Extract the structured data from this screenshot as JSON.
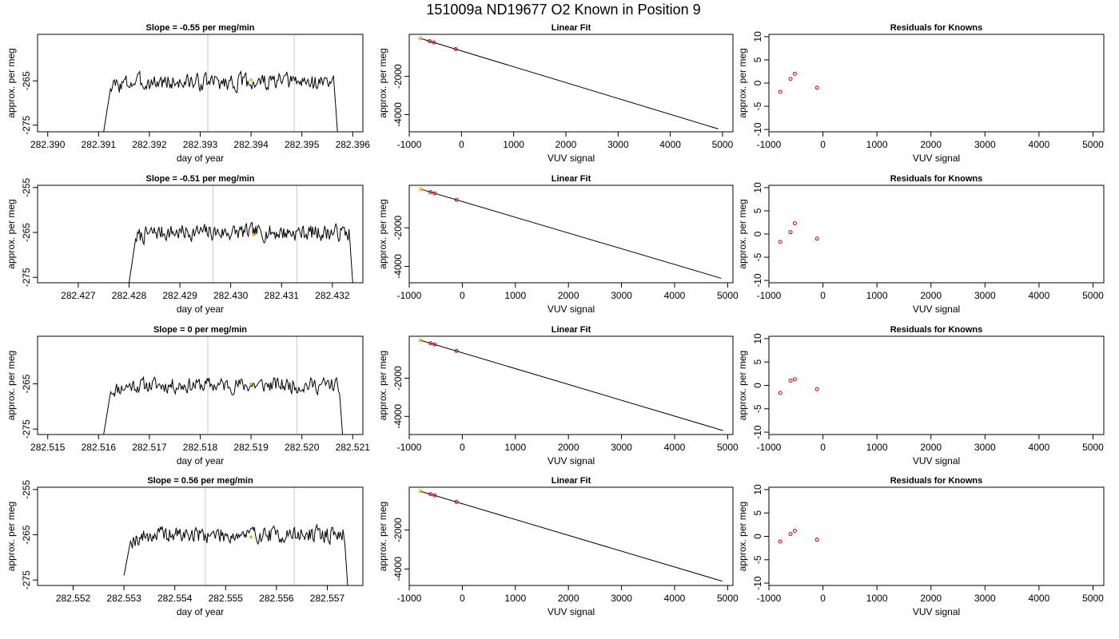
{
  "page_title": "151009a     ND19677   O2 Known in Position  9",
  "colors": {
    "trace": "#000000",
    "grid_lines": "#c8c8c8",
    "highlight_point": "#ffa500",
    "residual_point": "#cc0000",
    "fit_point": "#cc0000"
  },
  "chart_data": [
    {
      "type": "line",
      "panel": "time-series",
      "row": 1,
      "title": "Slope =  -0.55  per meg/min",
      "xlabel": "day of year",
      "ylabel": "approx. per meg",
      "xlim": [
        282.3898,
        282.3962
      ],
      "ylim": [
        -276.5,
        -254.5
      ],
      "x_ticks": [
        "282.390",
        "282.391",
        "282.392",
        "282.393",
        "282.394",
        "282.395",
        "282.396"
      ],
      "x_tick_values": [
        282.39,
        282.391,
        282.392,
        282.393,
        282.394,
        282.395,
        282.396
      ],
      "y_ticks": [
        "-265",
        "-275"
      ],
      "y_tick_values": [
        -265,
        -275
      ],
      "trace_x_range": [
        282.3911,
        282.3957
      ],
      "trace_start_y": -276.5,
      "trace_end_y": -276.5,
      "mean_level": -265.3,
      "noise_amplitude": 1.7,
      "seed": 3,
      "vlines": [
        282.39315,
        282.39485
      ],
      "highlight": {
        "x": 282.394,
        "y": -264.8
      }
    },
    {
      "type": "line",
      "panel": "linear-fit",
      "row": 1,
      "title": "Linear Fit",
      "xlabel": "VUV signal",
      "ylabel": "approx. per meg",
      "xlim": [
        -1000,
        5200
      ],
      "ylim": [
        -4900,
        200
      ],
      "x_ticks": [
        "-1000",
        "0",
        "1000",
        "2000",
        "3000",
        "4000",
        "5000"
      ],
      "x_tick_values": [
        -1000,
        0,
        1000,
        2000,
        3000,
        4000,
        5000
      ],
      "y_ticks": [
        "-2000",
        "-4000"
      ],
      "y_tick_values": [
        -2000,
        -4000
      ],
      "fit_line": {
        "x": [
          -790,
          4920
        ],
        "y": [
          -10,
          -4750
        ]
      },
      "points": {
        "x": [
          -790,
          -610,
          -530,
          -110
        ],
        "y": [
          -10,
          -160,
          -225,
          -575
        ]
      },
      "highlight_index": 0
    },
    {
      "type": "scatter",
      "panel": "residuals",
      "row": 1,
      "title": "Residuals for Knowns",
      "xlabel": "VUV signal",
      "ylabel": "approx. per meg",
      "xlim": [
        -1000,
        5200
      ],
      "ylim": [
        -10.5,
        10.5
      ],
      "x_ticks": [
        "-1000",
        "0",
        "1000",
        "2000",
        "3000",
        "4000",
        "5000"
      ],
      "x_tick_values": [
        -1000,
        0,
        1000,
        2000,
        3000,
        4000,
        5000
      ],
      "y_ticks": [
        "10",
        "5",
        "0",
        "-5",
        "-10"
      ],
      "y_tick_values": [
        10,
        5,
        0,
        -5,
        -10
      ],
      "points": {
        "x": [
          -790,
          -600,
          -520,
          -110
        ],
        "y": [
          -1.9,
          0.9,
          2.0,
          -1.0
        ]
      }
    },
    {
      "type": "line",
      "panel": "time-series",
      "row": 2,
      "title": "Slope =  -0.51  per meg/min",
      "xlabel": "day of year",
      "ylabel": "approx. per meg",
      "xlim": [
        282.4262,
        282.4326
      ],
      "ylim": [
        -276.2,
        -254.5
      ],
      "x_ticks": [
        "282.427",
        "282.428",
        "282.429",
        "282.430",
        "282.431",
        "282.432"
      ],
      "x_tick_values": [
        282.427,
        282.428,
        282.429,
        282.43,
        282.431,
        282.432
      ],
      "y_ticks": [
        "-255",
        "-265",
        "-275"
      ],
      "y_tick_values": [
        -255,
        -265,
        -275
      ],
      "trace_x_range": [
        282.428,
        282.4324
      ],
      "trace_start_y": -276.2,
      "trace_end_y": -276.2,
      "mean_level": -265.0,
      "noise_amplitude": 1.6,
      "seed": 7,
      "vlines": [
        282.42965,
        282.4313
      ],
      "highlight": {
        "x": 282.43045,
        "y": -265.5
      }
    },
    {
      "type": "line",
      "panel": "linear-fit",
      "row": 2,
      "title": "Linear Fit",
      "xlabel": "VUV signal",
      "ylabel": "approx. per meg",
      "xlim": [
        -1000,
        5100
      ],
      "ylim": [
        -4850,
        200
      ],
      "x_ticks": [
        "-1000",
        "0",
        "1000",
        "2000",
        "3000",
        "4000",
        "5000"
      ],
      "x_tick_values": [
        -1000,
        0,
        1000,
        2000,
        3000,
        4000,
        5000
      ],
      "y_ticks": [
        "-2000",
        "-4000"
      ],
      "y_tick_values": [
        -2000,
        -4000
      ],
      "fit_line": {
        "x": [
          -780,
          4880
        ],
        "y": [
          -5,
          -4620
        ]
      },
      "points": {
        "x": [
          -780,
          -600,
          -520,
          -110
        ],
        "y": [
          -5,
          -155,
          -220,
          -555
        ]
      },
      "highlight_index": 0
    },
    {
      "type": "scatter",
      "panel": "residuals",
      "row": 2,
      "title": "Residuals for Knowns",
      "xlabel": "VUV signal",
      "ylabel": "approx. per meg",
      "xlim": [
        -1000,
        5200
      ],
      "ylim": [
        -10.5,
        10.5
      ],
      "x_ticks": [
        "-1000",
        "0",
        "1000",
        "2000",
        "3000",
        "4000",
        "5000"
      ],
      "x_tick_values": [
        -1000,
        0,
        1000,
        2000,
        3000,
        4000,
        5000
      ],
      "y_ticks": [
        "10",
        "5",
        "0",
        "-5",
        "-10"
      ],
      "y_tick_values": [
        10,
        5,
        0,
        -5,
        -10
      ],
      "points": {
        "x": [
          -790,
          -600,
          -520,
          -110
        ],
        "y": [
          -1.7,
          0.4,
          2.3,
          -1.0
        ]
      }
    },
    {
      "type": "line",
      "panel": "time-series",
      "row": 3,
      "title": "Slope =  0  per meg/min",
      "xlabel": "day of year",
      "ylabel": "approx. per meg",
      "xlim": [
        282.5148,
        282.5212
      ],
      "ylim": [
        -276.2,
        -254.5
      ],
      "x_ticks": [
        "282.515",
        "282.516",
        "282.517",
        "282.518",
        "282.519",
        "282.520",
        "282.521"
      ],
      "x_tick_values": [
        282.515,
        282.516,
        282.517,
        282.518,
        282.519,
        282.52,
        282.521
      ],
      "y_ticks": [
        "-265",
        "-275"
      ],
      "y_tick_values": [
        -265,
        -275
      ],
      "trace_x_range": [
        282.5161,
        282.5208
      ],
      "trace_start_y": -276.2,
      "trace_end_y": -276.2,
      "mean_level": -265.3,
      "noise_amplitude": 1.5,
      "seed": 11,
      "vlines": [
        282.51815,
        282.5199
      ],
      "highlight": {
        "x": 282.519,
        "y": -265.0
      }
    },
    {
      "type": "line",
      "panel": "linear-fit",
      "row": 3,
      "title": "Linear Fit",
      "xlabel": "VUV signal",
      "ylabel": "approx. per meg",
      "xlim": [
        -1000,
        5100
      ],
      "ylim": [
        -4950,
        200
      ],
      "x_ticks": [
        "-1000",
        "0",
        "1000",
        "2000",
        "3000",
        "4000",
        "5000"
      ],
      "x_tick_values": [
        -1000,
        0,
        1000,
        2000,
        3000,
        4000,
        5000
      ],
      "y_ticks": [
        "-2000",
        "-4000"
      ],
      "y_tick_values": [
        -2000,
        -4000
      ],
      "fit_line": {
        "x": [
          -790,
          4910
        ],
        "y": [
          -10,
          -4740
        ]
      },
      "points": {
        "x": [
          -790,
          -600,
          -520,
          -110
        ],
        "y": [
          -10,
          -165,
          -230,
          -570
        ]
      },
      "highlight_index": 0
    },
    {
      "type": "scatter",
      "panel": "residuals",
      "row": 3,
      "title": "Residuals for Knowns",
      "xlabel": "VUV signal",
      "ylabel": "approx. per meg",
      "xlim": [
        -1000,
        5200
      ],
      "ylim": [
        -10.5,
        10.5
      ],
      "x_ticks": [
        "-1000",
        "0",
        "1000",
        "2000",
        "3000",
        "4000",
        "5000"
      ],
      "x_tick_values": [
        -1000,
        0,
        1000,
        2000,
        3000,
        4000,
        5000
      ],
      "y_ticks": [
        "10",
        "5",
        "0",
        "-5",
        "-10"
      ],
      "y_tick_values": [
        10,
        5,
        0,
        -5,
        -10
      ],
      "points": {
        "x": [
          -790,
          -600,
          -520,
          -110
        ],
        "y": [
          -1.6,
          1.0,
          1.3,
          -0.8
        ]
      }
    },
    {
      "type": "line",
      "panel": "time-series",
      "row": 4,
      "title": "Slope =  0.56  per meg/min",
      "xlabel": "day of year",
      "ylabel": "approx. per meg",
      "xlim": [
        282.5513,
        282.5577
      ],
      "ylim": [
        -276.2,
        -254.5
      ],
      "x_ticks": [
        "282.552",
        "282.553",
        "282.554",
        "282.555",
        "282.556",
        "282.557"
      ],
      "x_tick_values": [
        282.552,
        282.553,
        282.554,
        282.555,
        282.556,
        282.557
      ],
      "y_ticks": [
        "-255",
        "-265",
        "-275"
      ],
      "y_tick_values": [
        -255,
        -265,
        -275
      ],
      "trace_x_range": [
        282.553,
        282.5574
      ],
      "trace_start_y": -274.0,
      "trace_end_y": -276.2,
      "mean_level": -265.0,
      "noise_amplitude": 1.6,
      "seed": 19,
      "vlines": [
        282.5546,
        282.55635
      ],
      "highlight": {
        "x": 282.5555,
        "y": -265.5
      }
    },
    {
      "type": "line",
      "panel": "linear-fit",
      "row": 4,
      "title": "Linear Fit",
      "xlabel": "VUV signal",
      "ylabel": "approx. per meg",
      "xlim": [
        -1000,
        5100
      ],
      "ylim": [
        -4850,
        200
      ],
      "x_ticks": [
        "-1000",
        "0",
        "1000",
        "2000",
        "3000",
        "4000",
        "5000"
      ],
      "x_tick_values": [
        -1000,
        0,
        1000,
        2000,
        3000,
        4000,
        5000
      ],
      "y_ticks": [
        "-2000",
        "-4000"
      ],
      "y_tick_values": [
        -2000,
        -4000
      ],
      "fit_line": {
        "x": [
          -790,
          4900
        ],
        "y": [
          -5,
          -4630
        ]
      },
      "points": {
        "x": [
          -790,
          -600,
          -520,
          -110
        ],
        "y": [
          -5,
          -155,
          -220,
          -555
        ]
      },
      "highlight_index": 0
    },
    {
      "type": "scatter",
      "panel": "residuals",
      "row": 4,
      "title": "Residuals for Knowns",
      "xlabel": "VUV signal",
      "ylabel": "approx. per meg",
      "xlim": [
        -1000,
        5200
      ],
      "ylim": [
        -10.5,
        10.5
      ],
      "x_ticks": [
        "-1000",
        "0",
        "1000",
        "2000",
        "3000",
        "4000",
        "5000"
      ],
      "x_tick_values": [
        -1000,
        0,
        1000,
        2000,
        3000,
        4000,
        5000
      ],
      "y_ticks": [
        "10",
        "5",
        "0",
        "-5",
        "-10"
      ],
      "y_tick_values": [
        10,
        5,
        0,
        -5,
        -10
      ],
      "points": {
        "x": [
          -790,
          -600,
          -520,
          -110
        ],
        "y": [
          -1.1,
          0.5,
          1.2,
          -0.7
        ]
      }
    }
  ]
}
